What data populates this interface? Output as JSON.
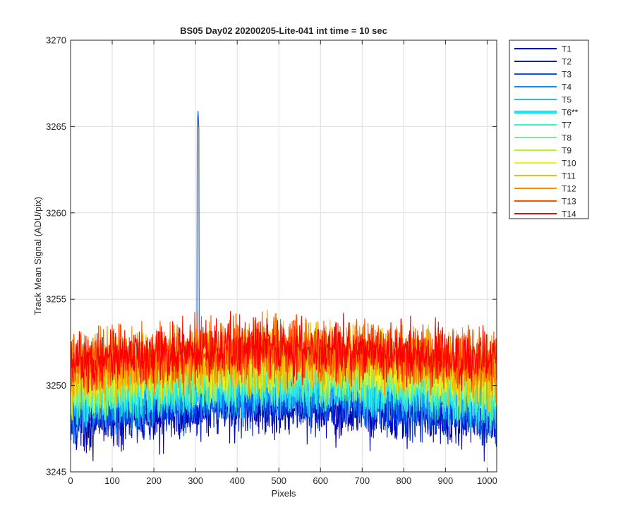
{
  "chart_data": {
    "type": "line",
    "title": "BS05 Day02 20200205-Lite-041 int time = 10 sec",
    "xlabel": "Pixels",
    "ylabel": "Track Mean Signal (ADU/pix)",
    "xlim": [
      0,
      1023
    ],
    "ylim": [
      3245,
      3270
    ],
    "xticks": [
      0,
      100,
      200,
      300,
      400,
      500,
      600,
      700,
      800,
      900,
      1000
    ],
    "yticks": [
      3245,
      3250,
      3255,
      3260,
      3265,
      3270
    ],
    "grid": true,
    "legend_position": "outside-top-right",
    "series": [
      {
        "name": "T1",
        "color": "#0000aa",
        "base": 3248.2,
        "amp": 0.9,
        "noise": 1.3
      },
      {
        "name": "T2",
        "color": "#0018d0",
        "base": 3248.5,
        "amp": 0.9,
        "noise": 1.2
      },
      {
        "name": "T3",
        "color": "#0a50e6",
        "base": 3248.8,
        "amp": 0.9,
        "noise": 1.2,
        "spike": {
          "x": 306,
          "y": 3265.9
        }
      },
      {
        "name": "T4",
        "color": "#1488f0",
        "base": 3249.1,
        "amp": 0.9,
        "noise": 1.2
      },
      {
        "name": "T5",
        "color": "#19c2f5",
        "base": 3249.4,
        "amp": 0.9,
        "noise": 1.2
      },
      {
        "name": "T6**",
        "color": "#1ee6ee",
        "base": 3249.7,
        "amp": 0.9,
        "noise": 1.2,
        "bold": true
      },
      {
        "name": "T7",
        "color": "#40f0c8",
        "base": 3249.9,
        "amp": 0.9,
        "noise": 1.2
      },
      {
        "name": "T8",
        "color": "#7af08c",
        "base": 3250.1,
        "amp": 0.9,
        "noise": 1.2
      },
      {
        "name": "T9",
        "color": "#b4f040",
        "base": 3250.4,
        "amp": 0.9,
        "noise": 1.2
      },
      {
        "name": "T10",
        "color": "#f0f020",
        "base": 3250.7,
        "amp": 0.9,
        "noise": 1.2
      },
      {
        "name": "T11",
        "color": "#f0c000",
        "base": 3251.0,
        "amp": 0.9,
        "noise": 1.3
      },
      {
        "name": "T12",
        "color": "#fa8c00",
        "base": 3251.3,
        "amp": 0.9,
        "noise": 1.3
      },
      {
        "name": "T13",
        "color": "#fa5000",
        "base": 3251.5,
        "amp": 0.9,
        "noise": 1.3
      },
      {
        "name": "T14",
        "color": "#ff0000",
        "base": 3251.6,
        "amp": 0.9,
        "noise": 1.2
      }
    ]
  }
}
